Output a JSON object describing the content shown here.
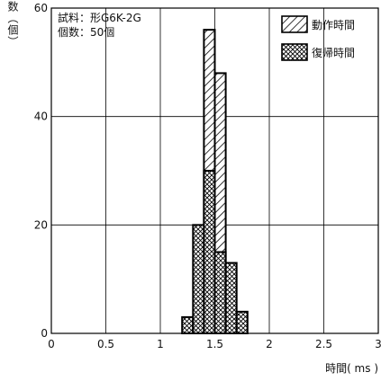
{
  "chart_data": {
    "type": "bar",
    "ylabel": "接点数（個）",
    "xlabel": "時間( ms )",
    "annotation_lines": [
      "試料：形G6K-2G",
      "個数：50個"
    ],
    "xlim": [
      0,
      3
    ],
    "ylim": [
      0,
      60
    ],
    "x_ticks": [
      0,
      0.5,
      1,
      1.5,
      2,
      2.5,
      3
    ],
    "x_tick_labels": [
      "0",
      "0.5",
      "1",
      "1.5",
      "2",
      "2.5",
      "3"
    ],
    "y_ticks": [
      0,
      20,
      40,
      60
    ],
    "y_tick_labels": [
      "0",
      "20",
      "40",
      "60"
    ],
    "grid": true,
    "legend_position": "top-right",
    "bin_width": 0.1,
    "series": [
      {
        "name": "動作時間",
        "pattern": "diagonal-hatch",
        "bins": [
          {
            "x": 1.35,
            "count": 0
          },
          {
            "x": 1.45,
            "count": 56
          },
          {
            "x": 1.55,
            "count": 48
          },
          {
            "x": 1.65,
            "count": 0
          }
        ]
      },
      {
        "name": "復帰時間",
        "pattern": "cross-hatch",
        "bins": [
          {
            "x": 1.25,
            "count": 3
          },
          {
            "x": 1.35,
            "count": 20
          },
          {
            "x": 1.45,
            "count": 30
          },
          {
            "x": 1.55,
            "count": 15
          },
          {
            "x": 1.65,
            "count": 13
          },
          {
            "x": 1.75,
            "count": 4
          }
        ]
      }
    ]
  }
}
